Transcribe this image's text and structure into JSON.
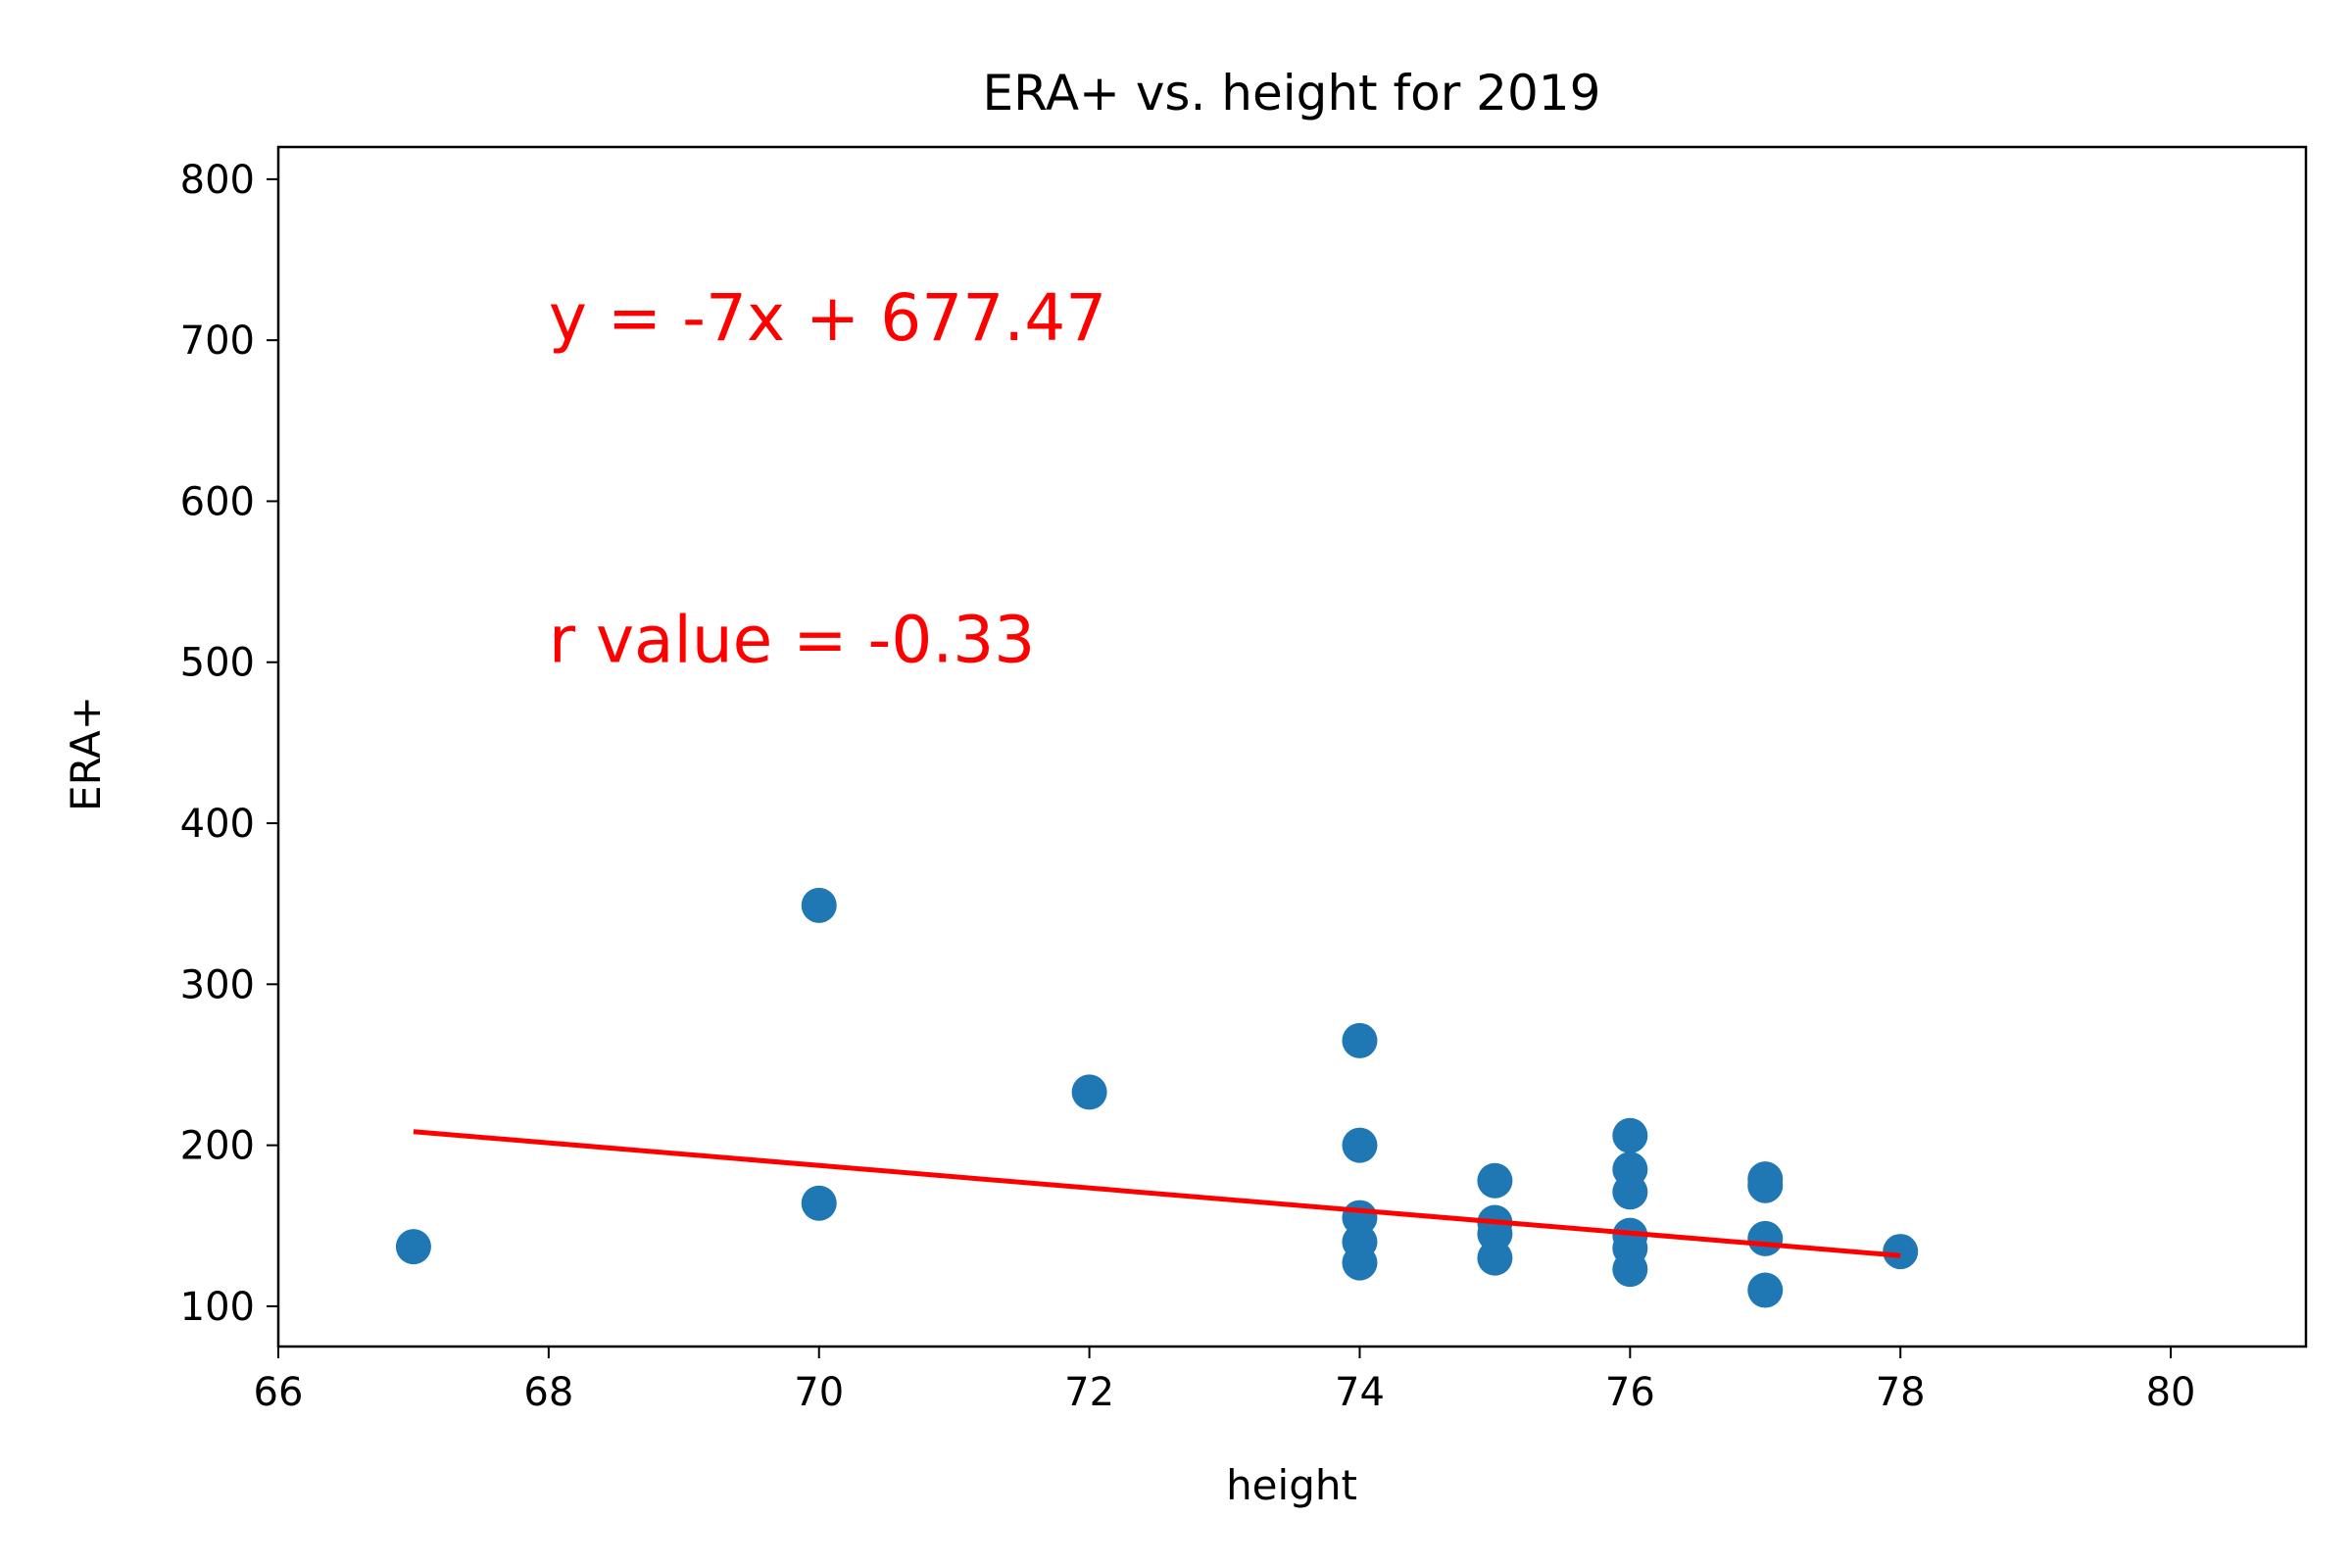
{
  "chart_data": {
    "type": "scatter",
    "title": "ERA+ vs. height for 2019",
    "xlabel": "height",
    "ylabel": "ERA+",
    "xlim": [
      66,
      81
    ],
    "ylim": [
      75,
      820
    ],
    "xticks": [
      66,
      68,
      70,
      72,
      74,
      76,
      78,
      80
    ],
    "yticks": [
      100,
      200,
      300,
      400,
      500,
      600,
      700,
      800
    ],
    "grid": false,
    "point_color": "#1f77b4",
    "line_color": "#ff0000",
    "points": [
      {
        "x": 67,
        "y": 137
      },
      {
        "x": 70,
        "y": 349
      },
      {
        "x": 70,
        "y": 164
      },
      {
        "x": 72,
        "y": 233
      },
      {
        "x": 74,
        "y": 265
      },
      {
        "x": 74,
        "y": 200
      },
      {
        "x": 74,
        "y": 155
      },
      {
        "x": 74,
        "y": 140
      },
      {
        "x": 74,
        "y": 127
      },
      {
        "x": 75,
        "y": 178
      },
      {
        "x": 75,
        "y": 152
      },
      {
        "x": 75,
        "y": 145
      },
      {
        "x": 75,
        "y": 130
      },
      {
        "x": 76,
        "y": 206
      },
      {
        "x": 76,
        "y": 185
      },
      {
        "x": 76,
        "y": 171
      },
      {
        "x": 76,
        "y": 144
      },
      {
        "x": 76,
        "y": 136
      },
      {
        "x": 76,
        "y": 123
      },
      {
        "x": 77,
        "y": 179
      },
      {
        "x": 77,
        "y": 175
      },
      {
        "x": 77,
        "y": 142
      },
      {
        "x": 77,
        "y": 110
      },
      {
        "x": 78,
        "y": 134
      }
    ],
    "regression": {
      "slope": -7,
      "intercept": 677.47,
      "x_range": [
        67,
        78
      ]
    },
    "annotations": [
      {
        "text": "y = -7x + 677.47",
        "x": 68,
        "y": 700,
        "color": "#ff0000"
      },
      {
        "text": "r value = -0.33",
        "x": 68,
        "y": 500,
        "color": "#ff0000"
      }
    ]
  }
}
